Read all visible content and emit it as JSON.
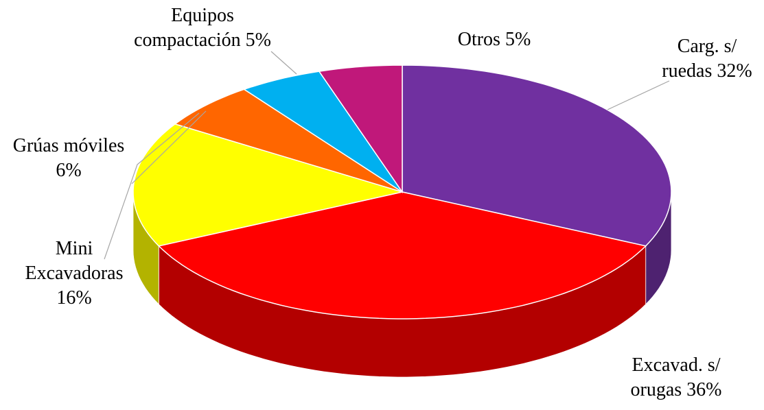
{
  "chart_data": {
    "type": "pie3d",
    "categories": [
      "Carg. s/ ruedas",
      "Excavad. s/ orugas",
      "Mini Excavadoras",
      "Grúas móviles",
      "Equipos compactación",
      "Otros"
    ],
    "values": [
      32,
      36,
      16,
      6,
      5,
      5
    ],
    "value_labels": [
      "32%",
      "36%",
      "16%",
      "6%",
      "5%",
      "5%"
    ],
    "colors": [
      "#7030a0",
      "#ff0000",
      "#ffff00",
      "#ff6600",
      "#00b0f0",
      "#c0187a"
    ]
  }
}
